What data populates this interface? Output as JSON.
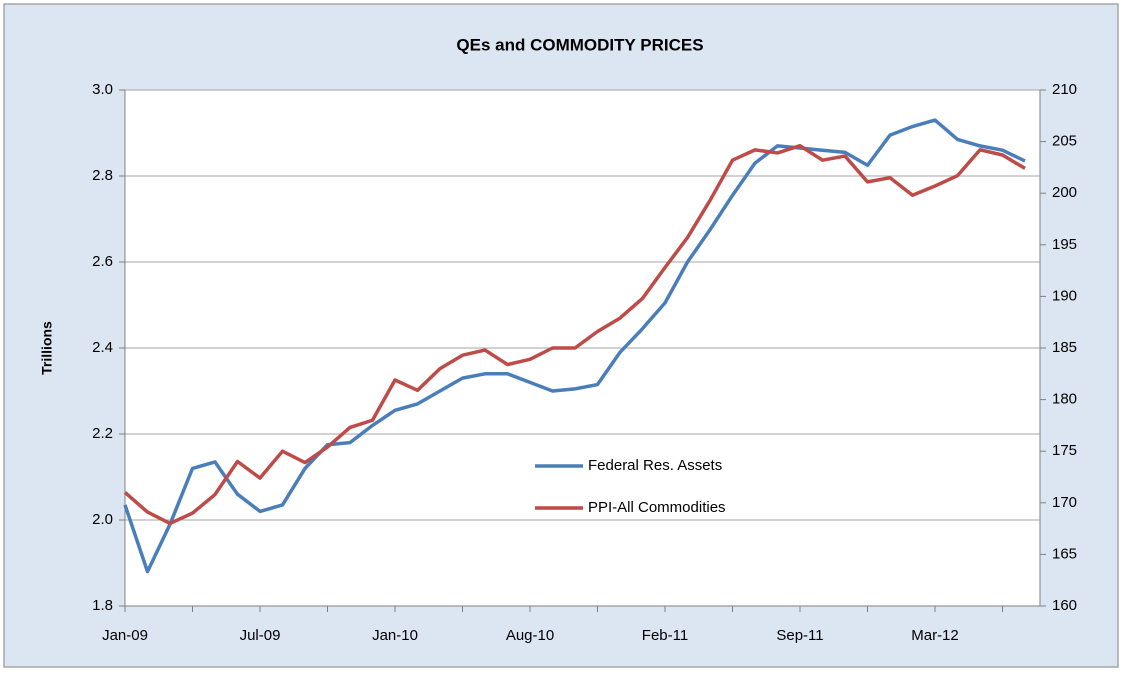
{
  "chart_data": {
    "type": "line",
    "title": "QEs and COMMODITY PRICES",
    "y_label": "Trillions",
    "categories": [
      "Jan-09",
      null,
      null,
      null,
      null,
      null,
      "Jul-09",
      null,
      null,
      null,
      null,
      null,
      "Jan-10",
      null,
      null,
      null,
      null,
      null,
      "Aug-10",
      null,
      null,
      null,
      null,
      null,
      "Feb-11",
      null,
      null,
      null,
      null,
      null,
      "Sep-11",
      null,
      null,
      null,
      null,
      null,
      "Mar-12",
      null,
      null,
      null,
      null
    ],
    "series": [
      {
        "name": "Federal Res. Assets",
        "color": "#4a7ebb",
        "axis": "y",
        "values": [
          2.035,
          1.88,
          1.99,
          2.12,
          2.135,
          2.06,
          2.02,
          2.035,
          2.12,
          2.175,
          2.18,
          2.22,
          2.255,
          2.27,
          2.3,
          2.33,
          2.34,
          2.34,
          2.32,
          2.3,
          2.305,
          2.315,
          2.39,
          2.445,
          2.505,
          2.6,
          2.675,
          2.755,
          2.83,
          2.87,
          2.865,
          2.86,
          2.855,
          2.825,
          2.895,
          2.915,
          2.93,
          2.885,
          2.87,
          2.86,
          2.835
        ]
      },
      {
        "name": "PPI-All Commodities",
        "color": "#be4b48",
        "axis": "y2",
        "values": [
          171,
          169.1,
          168,
          169,
          170.8,
          174,
          172.4,
          175,
          173.9,
          175.4,
          177.3,
          178,
          181.9,
          180.9,
          183,
          184.3,
          184.8,
          183.4,
          183.9,
          185,
          185,
          186.6,
          187.9,
          189.8,
          192.8,
          195.7,
          199.3,
          203.2,
          204.2,
          203.9,
          204.6,
          203.2,
          203.6,
          201.1,
          201.5,
          199.8,
          200.7,
          201.7,
          204.2,
          203.7,
          202.4
        ]
      }
    ],
    "ylim": [
      1.8,
      3.0
    ],
    "yticks": [
      {
        "value": 1.8,
        "label": "1.8"
      },
      {
        "value": 2.0,
        "label": "2.0"
      },
      {
        "value": 2.2,
        "label": "2.2"
      },
      {
        "value": 2.4,
        "label": "2.4"
      },
      {
        "value": 2.6,
        "label": "2.6"
      },
      {
        "value": 2.8,
        "label": "2.8"
      },
      {
        "value": 3.0,
        "label": "3.0"
      }
    ],
    "y2lim": [
      160,
      210
    ],
    "y2ticks": [
      160,
      165,
      170,
      175,
      180,
      185,
      190,
      195,
      200,
      205,
      210
    ],
    "grid": true,
    "legend_position": "center"
  }
}
